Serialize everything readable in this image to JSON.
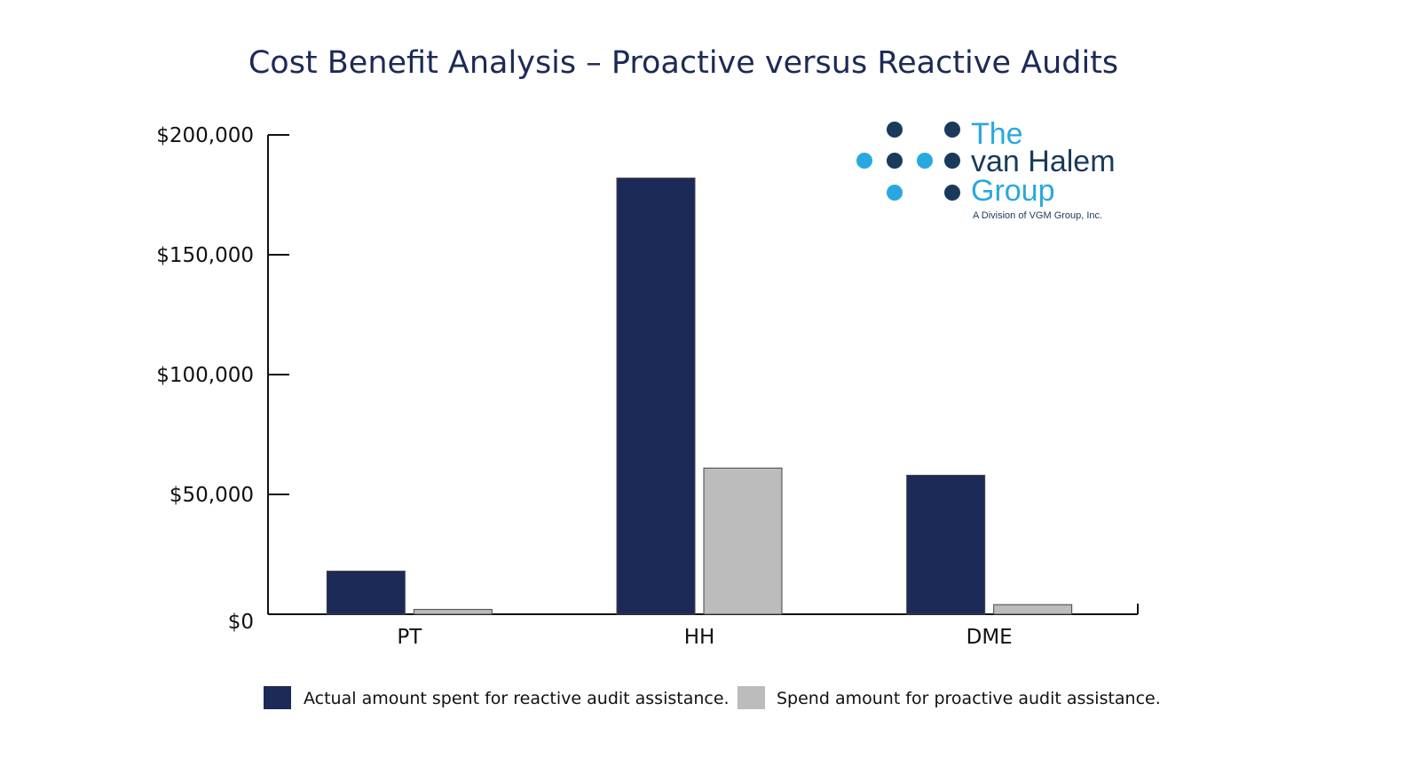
{
  "chart_data": {
    "type": "bar",
    "title": "Cost Benefit Analysis – Proactive versus Reactive Audits",
    "categories": [
      "PT",
      "HH",
      "DME"
    ],
    "series": [
      {
        "name": "Actual amount spent for reactive audit assistance.",
        "color": "#1c2a57",
        "values": [
          18000,
          182000,
          58000
        ]
      },
      {
        "name": "Spend amount for proactive audit assistance.",
        "color": "#bdbcbd",
        "values": [
          2000,
          61000,
          4000
        ]
      }
    ],
    "ylim": [
      0,
      200000
    ],
    "yticks": [
      0,
      50000,
      100000,
      150000,
      200000
    ],
    "ytick_labels": [
      "$0",
      "$50,000",
      "$100,000",
      "$150,000",
      "$200,000"
    ],
    "xlabel": "",
    "ylabel": "",
    "grid": false,
    "legend_position": "bottom"
  },
  "logo": {
    "line1": "The",
    "line2": "van Halem",
    "line3": "Group",
    "tagline": "A Division of VGM Group, Inc.",
    "colors": {
      "dark": "#1a3a5c",
      "light": "#29a8e0"
    }
  }
}
